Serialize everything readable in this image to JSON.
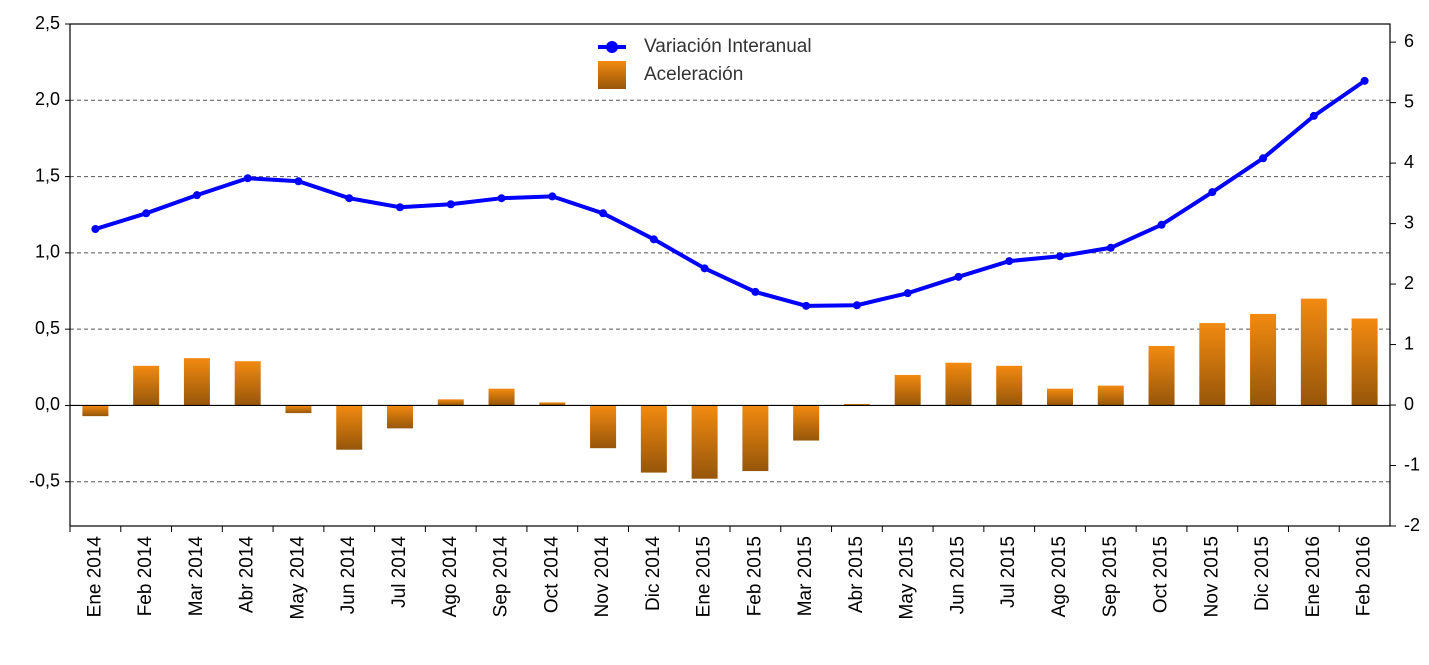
{
  "chart_data": {
    "type": "combo",
    "categories": [
      "Ene 2014",
      "Feb 2014",
      "Mar 2014",
      "Abr 2014",
      "May 2014",
      "Jun 2014",
      "Jul 2014",
      "Ago 2014",
      "Sep 2014",
      "Oct 2014",
      "Nov 2014",
      "Dic 2014",
      "Ene 2015",
      "Feb 2015",
      "Mar 2015",
      "Abr 2015",
      "May 2015",
      "Jun 2015",
      "Jul 2015",
      "Ago 2015",
      "Sep 2015",
      "Oct 2015",
      "Nov 2015",
      "Dic 2015",
      "Ene 2016",
      "Feb 2016"
    ],
    "series": [
      {
        "name": "Variación Interanual",
        "type": "line",
        "color": "#0000ff",
        "axis": "y2",
        "values": [
          2.91,
          3.17,
          3.47,
          3.75,
          3.7,
          3.42,
          3.27,
          3.32,
          3.42,
          3.45,
          3.17,
          2.74,
          2.26,
          1.87,
          1.64,
          1.65,
          1.85,
          2.12,
          2.38,
          2.46,
          2.6,
          2.98,
          3.52,
          4.08,
          4.78,
          5.36
        ]
      },
      {
        "name": "Aceleración",
        "type": "bar",
        "color": "#f28a10",
        "values": [
          -0.07,
          0.26,
          0.31,
          0.29,
          -0.05,
          -0.29,
          -0.15,
          0.04,
          0.11,
          0.02,
          -0.28,
          -0.44,
          -0.48,
          -0.43,
          -0.23,
          0.01,
          0.2,
          0.28,
          0.26,
          0.11,
          0.13,
          0.39,
          0.54,
          0.6,
          0.7,
          0.57
        ]
      }
    ],
    "ylim": [
      -0.79,
      2.5
    ],
    "yticks": [
      {
        "value": -0.5,
        "label": "-0,5"
      },
      {
        "value": 0,
        "label": "0,0"
      },
      {
        "value": 0.5,
        "label": "0,5"
      },
      {
        "value": 1,
        "label": "1,0"
      },
      {
        "value": 1.5,
        "label": "1,5"
      },
      {
        "value": 2,
        "label": "2,0"
      },
      {
        "value": 2.5,
        "label": "2,5"
      }
    ],
    "y2lim": [
      -2,
      6.3
    ],
    "y2ticks": [
      -2,
      -1,
      0,
      1,
      2,
      3,
      4,
      5,
      6
    ],
    "grid": true,
    "legend": "top"
  }
}
